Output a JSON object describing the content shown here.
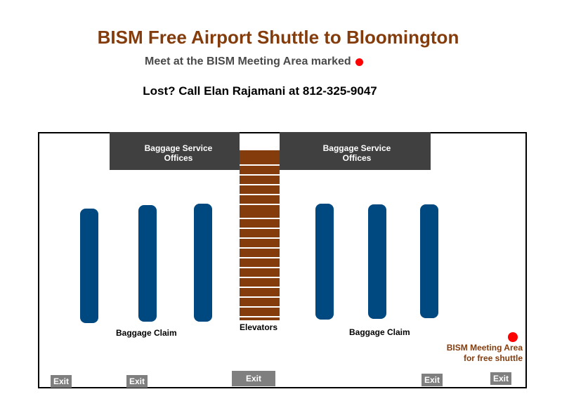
{
  "header": {
    "title": "BISM Free Airport Shuttle to Bloomington",
    "subtitle": "Meet at the BISM Meeting Area marked",
    "lost_line": "Lost? Call Elan Rajamani at 812-325-9047",
    "marker_color": "#ff0000"
  },
  "map": {
    "offices": [
      {
        "label": "Baggage Service\nOffices"
      },
      {
        "label": "Baggage Service\nOffices"
      }
    ],
    "elevators_label": "Elevators",
    "baggage_claim_left": "Baggage Claim",
    "baggage_claim_right": "Baggage Claim",
    "exits": [
      "Exit",
      "Exit",
      "Exit",
      "Exit",
      "Exit"
    ],
    "meeting_area_label": "BISM Meeting Area\nfor free shuttle",
    "colors": {
      "carousel": "#004880",
      "elevator": "#843c0c",
      "office": "#404040",
      "exit": "#7f7f7f",
      "title": "#843c0c"
    }
  }
}
